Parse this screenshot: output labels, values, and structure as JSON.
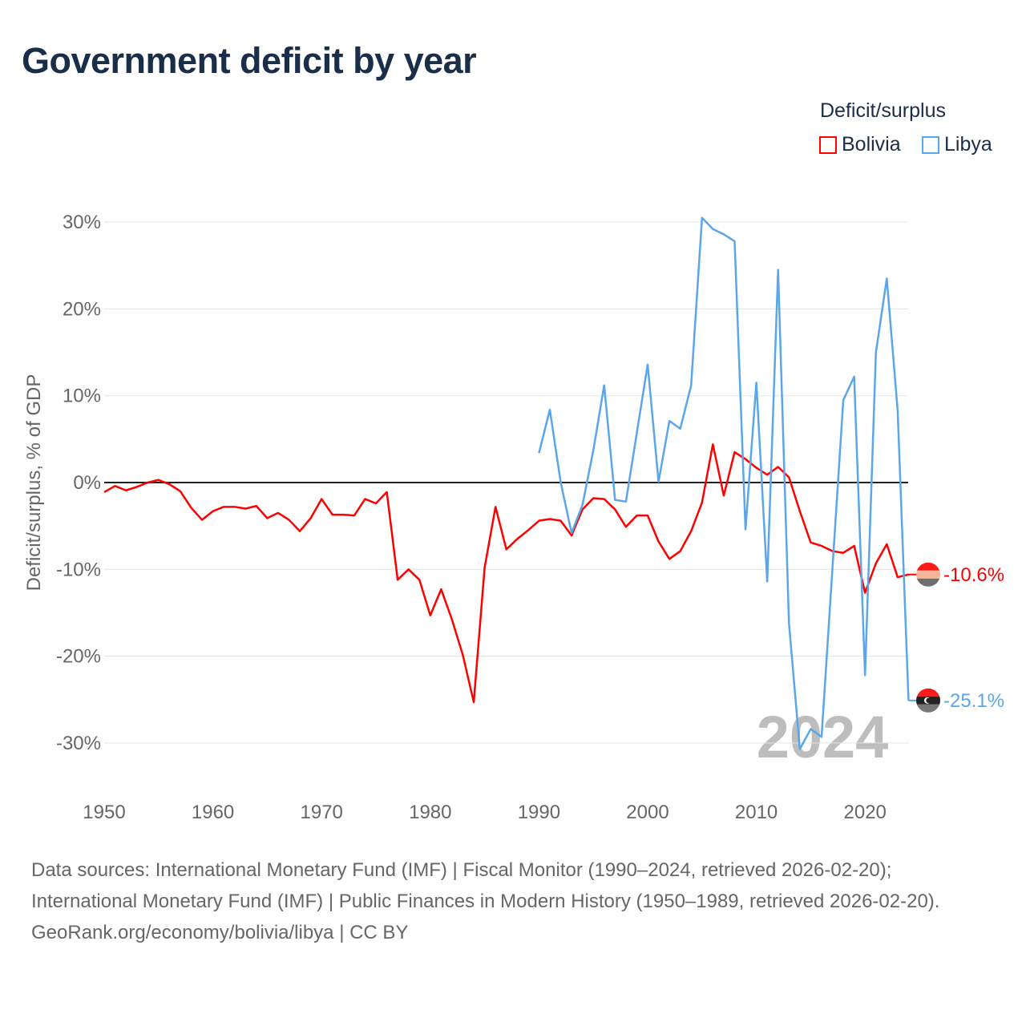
{
  "title": "Government deficit by year",
  "legend": {
    "title": "Deficit/surplus",
    "items": [
      {
        "name": "Bolivia",
        "color": "#ff0000"
      },
      {
        "name": "Libya",
        "color": "#5ba6e8"
      }
    ]
  },
  "footer": {
    "sources": "Data sources: International Monetary Fund (IMF) | Fiscal Monitor (1990–2024, retrieved 2026-02-20); International Monetary Fund (IMF) | Public Finances in Modern History (1950–1989, retrieved 2026-02-20).",
    "credit": "GeoRank.org/economy/bolivia/libya | CC BY"
  },
  "chart_data": {
    "type": "line",
    "title": "Government deficit by year",
    "xlabel": "",
    "ylabel": "Deficit/surplus, % of GDP",
    "xlim": [
      1950,
      2024
    ],
    "ylim": [
      -33,
      33
    ],
    "x_ticks": [
      "1950",
      "1960",
      "1970",
      "1980",
      "1990",
      "2000",
      "2010",
      "2020"
    ],
    "y_ticks": [
      {
        "v": 30,
        "label": "30%"
      },
      {
        "v": 20,
        "label": "20%"
      },
      {
        "v": 10,
        "label": "10%"
      },
      {
        "v": 0,
        "label": "0%"
      },
      {
        "v": -10,
        "label": "-10%"
      },
      {
        "v": -20,
        "label": "-20%"
      },
      {
        "v": -30,
        "label": "-30%"
      }
    ],
    "year_watermark": "2024",
    "legend_position": "top-right",
    "series": [
      {
        "name": "Bolivia",
        "color": "#ff0000",
        "start": 1950,
        "end_label": "-10.6%",
        "values": [
          -1.1,
          -0.4,
          -0.9,
          -0.5,
          0,
          0.3,
          -0.2,
          -1.0,
          -2.9,
          -4.3,
          -3.3,
          -2.8,
          -2.8,
          -3.0,
          -2.7,
          -4.1,
          -3.5,
          -4.3,
          -5.6,
          -4.1,
          -1.9,
          -3.7,
          -3.7,
          -3.8,
          -1.9,
          -2.4,
          -1.1,
          -11.2,
          -10.0,
          -11.2,
          -15.3,
          -12.3,
          -15.8,
          -19.9,
          -25.3,
          -9.8,
          -2.8,
          -7.7,
          -6.5,
          -5.5,
          -4.4,
          -4.2,
          -4.4,
          -6.1,
          -3.1,
          -1.8,
          -1.9,
          -3.1,
          -5.1,
          -3.8,
          -3.8,
          -6.8,
          -8.8,
          -7.9,
          -5.6,
          -2.3,
          4.4,
          -1.5,
          3.5,
          2.7,
          1.7,
          0.9,
          1.8,
          0.6,
          -3.3,
          -6.9,
          -7.3,
          -7.9,
          -8.1,
          -7.3,
          -12.7,
          -9.3,
          -7.1,
          -10.9,
          -10.6
        ]
      },
      {
        "name": "Libya",
        "color": "#5ba6e8",
        "start": 1990,
        "end_label": "-25.1%",
        "values": [
          3.4,
          8.4,
          0,
          -5.8,
          -2.6,
          3.7,
          11.2,
          -2.0,
          -2.2,
          5.7,
          13.6,
          0.1,
          7.1,
          6.2,
          11.2,
          30.5,
          29.2,
          28.6,
          27.8,
          -5.4,
          11.5,
          -11.4,
          24.5,
          -16.2,
          -30.7,
          -28.4,
          -29.3,
          -9.9,
          9.5,
          12.2,
          -22.2,
          15.0,
          23.5,
          8.3,
          -25.1
        ]
      }
    ]
  }
}
